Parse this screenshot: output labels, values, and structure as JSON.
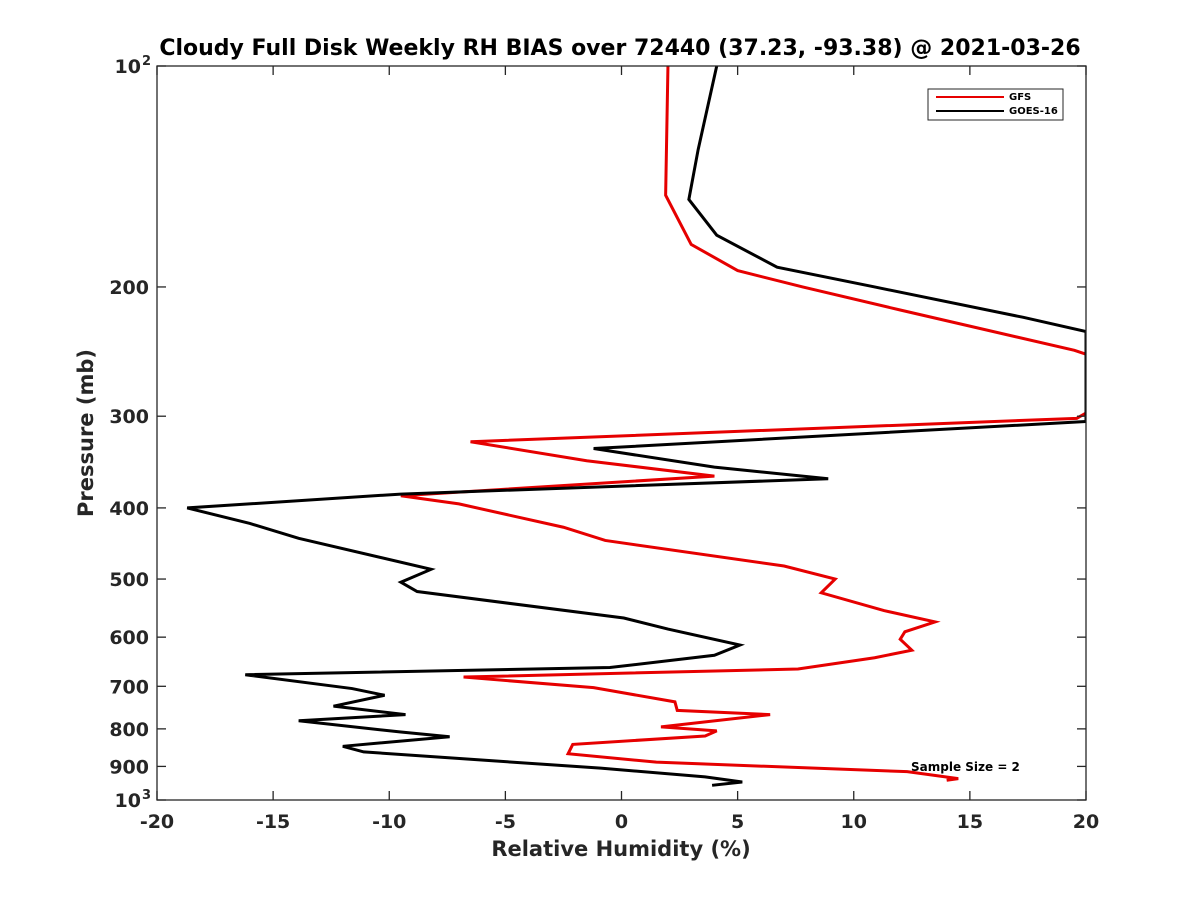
{
  "chart_data": {
    "type": "line",
    "title": "Cloudy Full Disk Weekly RH BIAS over 72440 (37.23, -93.38) @ 2021-03-26",
    "xlabel": "Relative Humidity (%)",
    "ylabel": "Pressure (mb)",
    "xlim": [
      -20,
      20
    ],
    "ylim": [
      100,
      1000
    ],
    "y_scale": "log",
    "y_reversed": true,
    "xticks": [
      {
        "value": -20,
        "label": "-20"
      },
      {
        "value": -15,
        "label": "-15"
      },
      {
        "value": -10,
        "label": "-10"
      },
      {
        "value": -5,
        "label": "-5"
      },
      {
        "value": 0,
        "label": "0"
      },
      {
        "value": 5,
        "label": "5"
      },
      {
        "value": 10,
        "label": "10"
      },
      {
        "value": 15,
        "label": "15"
      },
      {
        "value": 20,
        "label": "20"
      }
    ],
    "yticks": [
      {
        "value": 100,
        "label": "10",
        "sup": "2"
      },
      {
        "value": 200,
        "label": "200",
        "sup": ""
      },
      {
        "value": 300,
        "label": "300",
        "sup": ""
      },
      {
        "value": 400,
        "label": "400",
        "sup": ""
      },
      {
        "value": 500,
        "label": "500",
        "sup": ""
      },
      {
        "value": 600,
        "label": "600",
        "sup": ""
      },
      {
        "value": 700,
        "label": "700",
        "sup": ""
      },
      {
        "value": 800,
        "label": "800",
        "sup": ""
      },
      {
        "value": 900,
        "label": "900",
        "sup": ""
      },
      {
        "value": 1000,
        "label": "10",
        "sup": "3"
      }
    ],
    "grid": false,
    "legend_position": "top-right",
    "annotation": "Sample Size = 2",
    "series": [
      {
        "name": "GFS",
        "color": "#e60000",
        "points": [
          [
            2.0,
            100
          ],
          [
            1.9,
            150
          ],
          [
            3.0,
            175
          ],
          [
            5.0,
            190
          ],
          [
            7.8,
            200
          ],
          [
            12,
            215
          ],
          [
            19.5,
            244
          ],
          [
            20,
            247
          ],
          [
            20,
            297
          ],
          [
            19.6,
            302
          ],
          [
            -6.5,
            325
          ],
          [
            -1.5,
            345
          ],
          [
            4.0,
            362
          ],
          [
            -9.5,
            385
          ],
          [
            -7.0,
            395
          ],
          [
            -2.5,
            425
          ],
          [
            -0.7,
            443
          ],
          [
            7.0,
            480
          ],
          [
            9.2,
            500
          ],
          [
            8.6,
            522
          ],
          [
            11.3,
            552
          ],
          [
            13.5,
            572
          ],
          [
            12.2,
            590
          ],
          [
            12.0,
            604
          ],
          [
            12.5,
            625
          ],
          [
            10.9,
            640
          ],
          [
            7.6,
            663
          ],
          [
            -6.8,
            680
          ],
          [
            -1.2,
            703
          ],
          [
            2.3,
            735
          ],
          [
            2.4,
            755
          ],
          [
            6.4,
            765
          ],
          [
            1.7,
            795
          ],
          [
            4.1,
            805
          ],
          [
            3.6,
            818
          ],
          [
            -2.1,
            840
          ],
          [
            -2.3,
            865
          ],
          [
            1.5,
            888
          ],
          [
            12.3,
            915
          ],
          [
            14.5,
            935
          ],
          [
            14.0,
            940
          ]
        ]
      },
      {
        "name": "GOES-16",
        "color": "#000000",
        "points": [
          [
            4.1,
            100
          ],
          [
            3.3,
            130
          ],
          [
            2.9,
            152
          ],
          [
            4.1,
            170
          ],
          [
            6.7,
            188
          ],
          [
            10.9,
            200
          ],
          [
            17.3,
            220
          ],
          [
            20,
            230
          ],
          [
            20,
            305
          ],
          [
            -1.2,
            332
          ],
          [
            4.0,
            352
          ],
          [
            8.9,
            365
          ],
          [
            -9.5,
            383
          ],
          [
            -18.7,
            400
          ],
          [
            -16.0,
            420
          ],
          [
            -13.9,
            440
          ],
          [
            -8.2,
            485
          ],
          [
            -9.5,
            505
          ],
          [
            -8.8,
            520
          ],
          [
            0.1,
            565
          ],
          [
            2.0,
            585
          ],
          [
            5.1,
            615
          ],
          [
            4.0,
            635
          ],
          [
            -0.5,
            660
          ],
          [
            -16.2,
            675
          ],
          [
            -11.6,
            705
          ],
          [
            -10.2,
            720
          ],
          [
            -12.4,
            745
          ],
          [
            -9.3,
            765
          ],
          [
            -13.9,
            780
          ],
          [
            -9.5,
            808
          ],
          [
            -7.4,
            820
          ],
          [
            -12.0,
            845
          ],
          [
            -11.1,
            860
          ],
          [
            -0.9,
            905
          ],
          [
            3.6,
            930
          ],
          [
            5.2,
            945
          ],
          [
            3.9,
            955
          ]
        ]
      }
    ]
  }
}
